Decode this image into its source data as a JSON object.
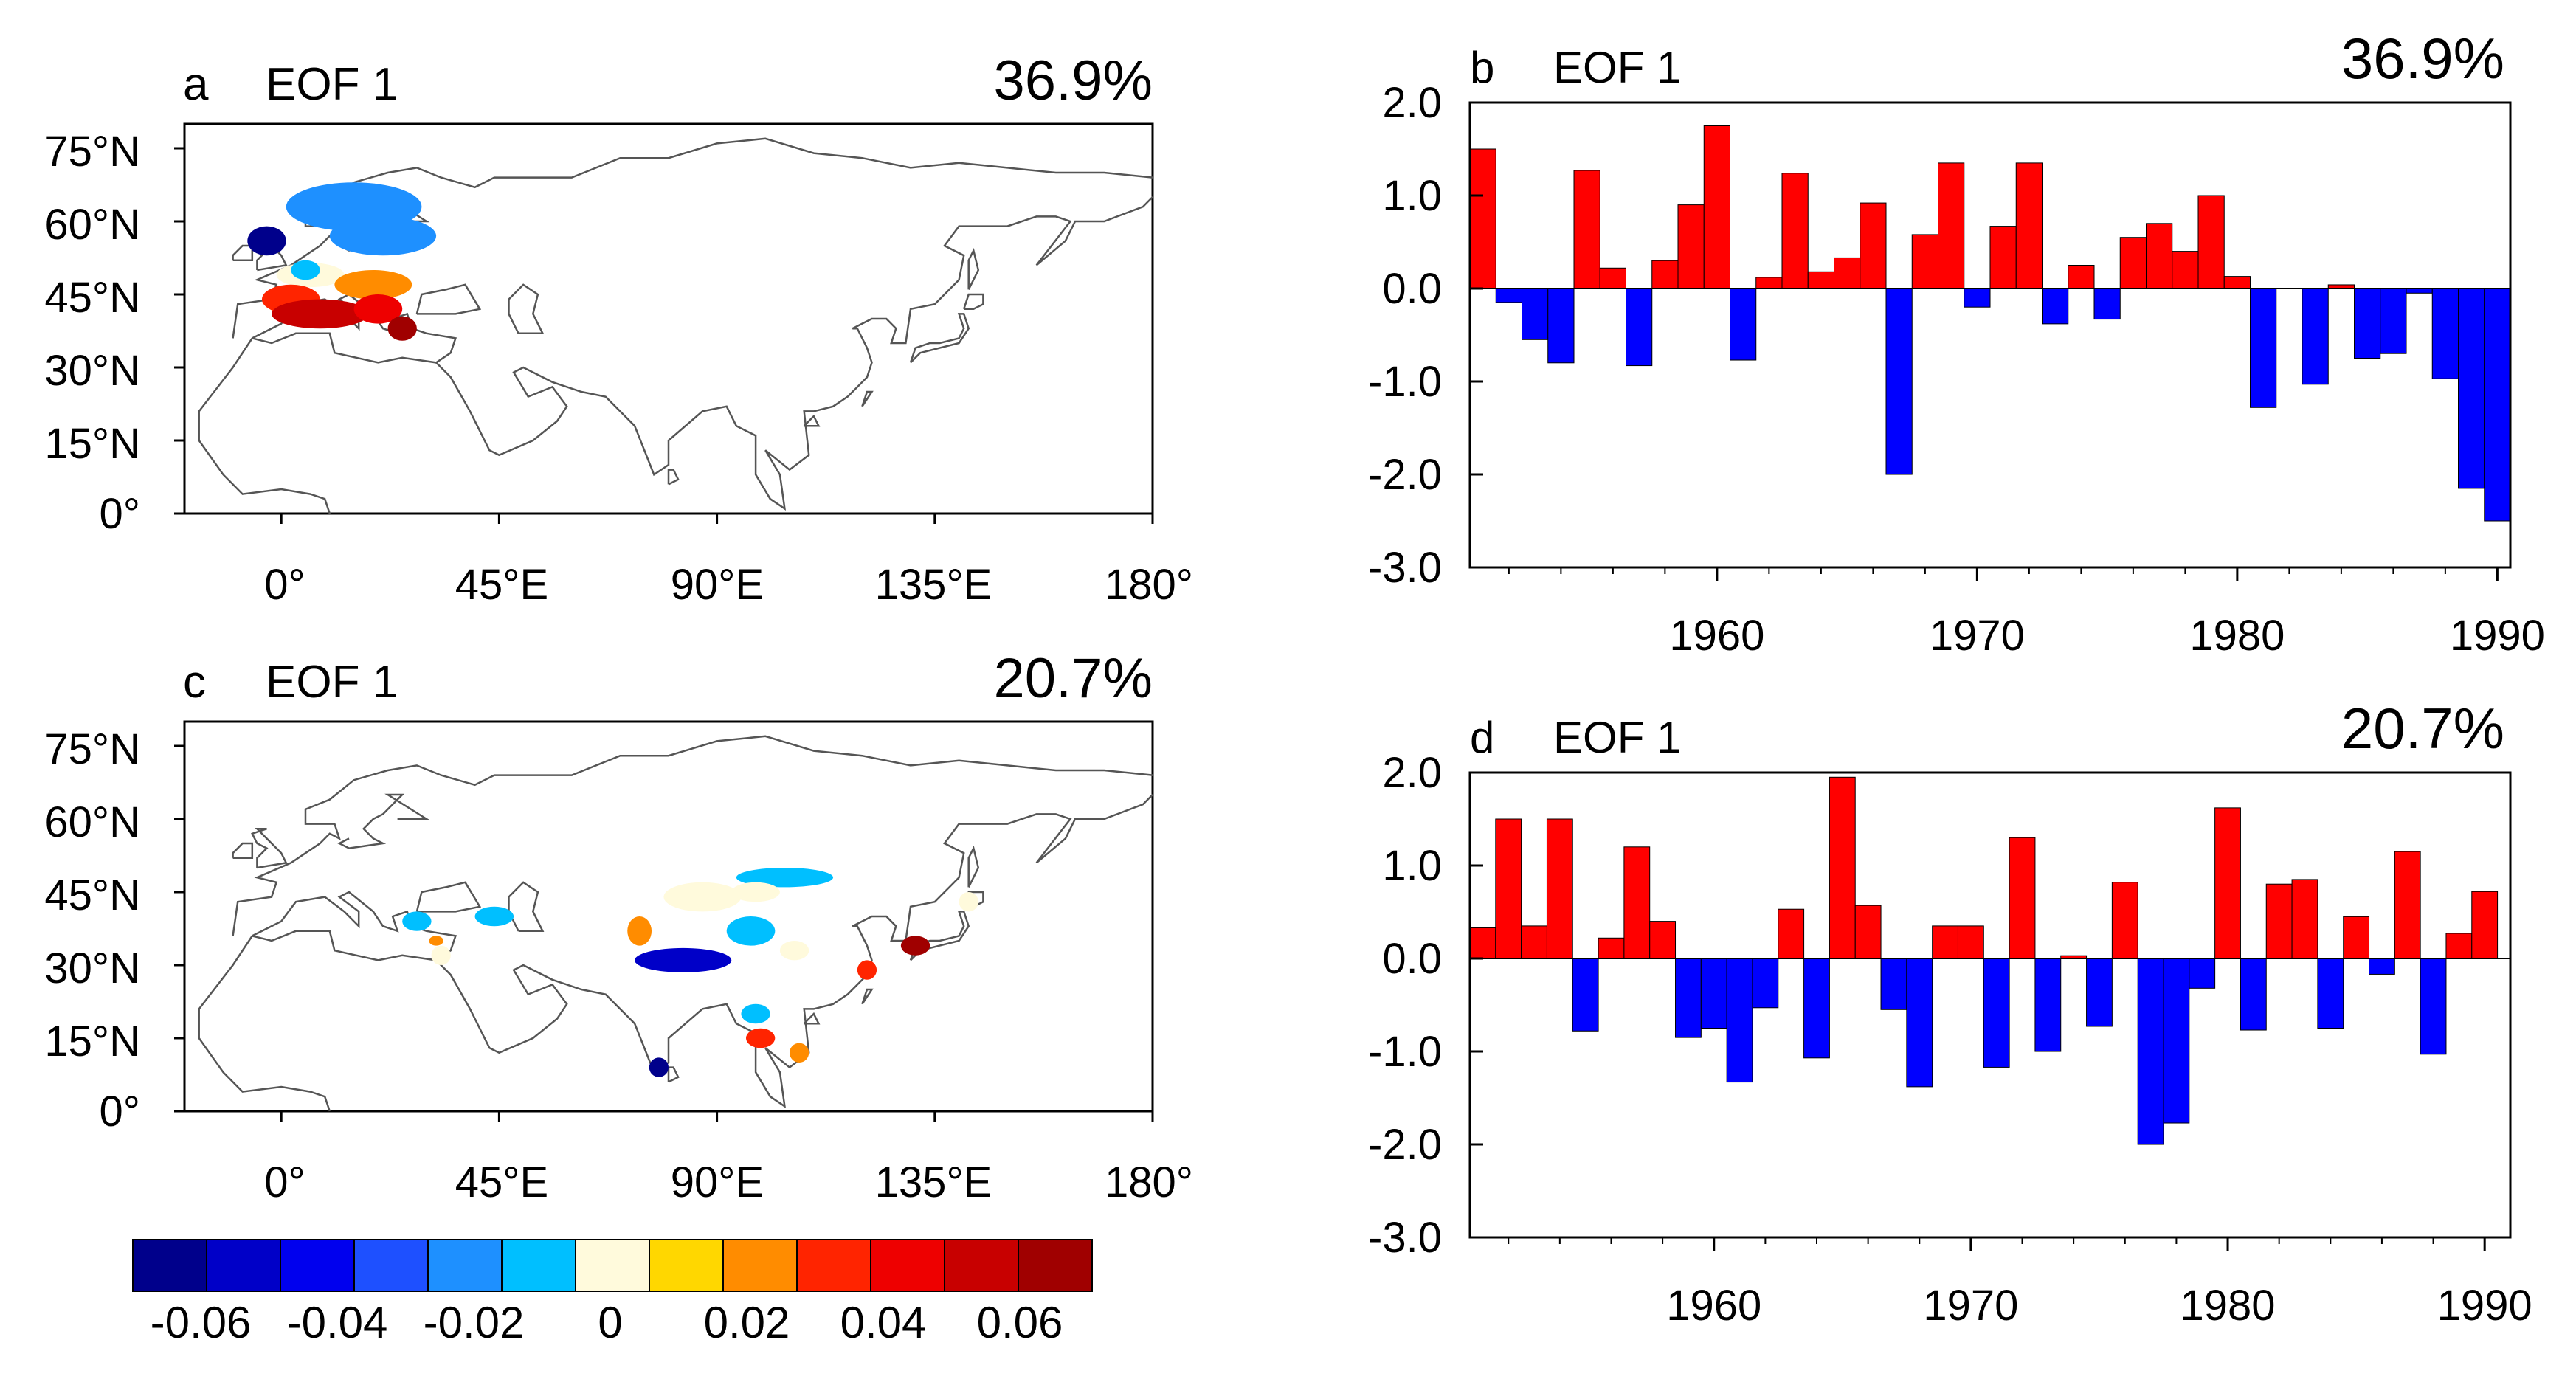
{
  "colors": {
    "positive_bar": "#ff0000",
    "negative_bar": "#0000ff",
    "coast": "#555555",
    "colorbar": [
      "#00008b",
      "#0000c8",
      "#0000ee",
      "#1e50ff",
      "#1e90ff",
      "#00bfff",
      "#fffadc",
      "#ffd700",
      "#ff8c00",
      "#ff2400",
      "#ee0000",
      "#c80000",
      "#a00000"
    ]
  },
  "maps": [
    {
      "panel_letter": "a",
      "title": "EOF 1",
      "variance": "36.9%",
      "lat_ticks": [
        "75°N",
        "60°N",
        "45°N",
        "30°N",
        "15°N",
        "0°"
      ],
      "lon_ticks": [
        "0°",
        "45°E",
        "90°E",
        "135°E",
        "180°"
      ],
      "patches": [
        {
          "lon": 15,
          "lat": 63,
          "value": -0.025,
          "rx": 14,
          "ry": 5
        },
        {
          "lon": 21,
          "lat": 57,
          "value": -0.02,
          "rx": 11,
          "ry": 4
        },
        {
          "lon": -3,
          "lat": 56,
          "value": -0.06,
          "rx": 4,
          "ry": 3
        },
        {
          "lon": 6,
          "lat": 49,
          "value": 0.0,
          "rx": 7,
          "ry": 2.5
        },
        {
          "lon": 5,
          "lat": 50,
          "value": -0.015,
          "rx": 3,
          "ry": 2
        },
        {
          "lon": 19,
          "lat": 47,
          "value": 0.02,
          "rx": 8,
          "ry": 3
        },
        {
          "lon": 2,
          "lat": 44,
          "value": 0.03,
          "rx": 6,
          "ry": 3
        },
        {
          "lon": 8,
          "lat": 41,
          "value": 0.045,
          "rx": 10,
          "ry": 3
        },
        {
          "lon": 20,
          "lat": 42,
          "value": 0.035,
          "rx": 5,
          "ry": 3
        },
        {
          "lon": 25,
          "lat": 38,
          "value": 0.055,
          "rx": 3,
          "ry": 2.5
        }
      ]
    },
    {
      "panel_letter": "c",
      "title": "EOF 1",
      "variance": "20.7%",
      "lat_ticks": [
        "75°N",
        "60°N",
        "45°N",
        "30°N",
        "15°N",
        "0°"
      ],
      "lon_ticks": [
        "0°",
        "45°E",
        "90°E",
        "135°E",
        "180°"
      ],
      "patches": [
        {
          "lon": 28,
          "lat": 39,
          "value": -0.015,
          "rx": 3,
          "ry": 2
        },
        {
          "lon": 44,
          "lat": 40,
          "value": -0.015,
          "rx": 4,
          "ry": 2
        },
        {
          "lon": 32,
          "lat": 35,
          "value": 0.02,
          "rx": 1.5,
          "ry": 1
        },
        {
          "lon": 33,
          "lat": 32,
          "value": 0.0,
          "rx": 2,
          "ry": 2
        },
        {
          "lon": 74,
          "lat": 37,
          "value": 0.02,
          "rx": 2.5,
          "ry": 3
        },
        {
          "lon": 87,
          "lat": 44,
          "value": 0.0,
          "rx": 8,
          "ry": 3
        },
        {
          "lon": 104,
          "lat": 48,
          "value": -0.015,
          "rx": 10,
          "ry": 2
        },
        {
          "lon": 98,
          "lat": 45,
          "value": 0.0,
          "rx": 5,
          "ry": 2
        },
        {
          "lon": 97,
          "lat": 37,
          "value": -0.015,
          "rx": 5,
          "ry": 3
        },
        {
          "lon": 106,
          "lat": 33,
          "value": 0.0,
          "rx": 3,
          "ry": 2
        },
        {
          "lon": 83,
          "lat": 31,
          "value": -0.05,
          "rx": 10,
          "ry": 2.5
        },
        {
          "lon": 98,
          "lat": 20,
          "value": -0.015,
          "rx": 3,
          "ry": 2
        },
        {
          "lon": 99,
          "lat": 15,
          "value": 0.025,
          "rx": 3,
          "ry": 2
        },
        {
          "lon": 107,
          "lat": 12,
          "value": 0.02,
          "rx": 2,
          "ry": 2
        },
        {
          "lon": 121,
          "lat": 29,
          "value": 0.03,
          "rx": 2,
          "ry": 2
        },
        {
          "lon": 131,
          "lat": 34,
          "value": 0.055,
          "rx": 3,
          "ry": 2
        },
        {
          "lon": 78,
          "lat": 9,
          "value": -0.06,
          "rx": 2,
          "ry": 2
        },
        {
          "lon": 142,
          "lat": 43,
          "value": 0.0,
          "rx": 2,
          "ry": 2
        }
      ]
    }
  ],
  "colorbar": {
    "tick_labels": [
      "-0.06",
      "-0.04",
      "-0.02",
      "0",
      "0.02",
      "0.04",
      "0.06"
    ]
  },
  "chart_data": [
    {
      "type": "bar",
      "panel_letter": "b",
      "title": "EOF 1",
      "variance": "36.9%",
      "x_start": 1951,
      "values": [
        1.5,
        -0.15,
        -0.55,
        -0.8,
        1.27,
        0.22,
        -0.83,
        0.3,
        0.9,
        1.75,
        -0.77,
        0.12,
        1.24,
        0.18,
        0.33,
        0.92,
        -2.0,
        0.58,
        1.35,
        -0.2,
        0.67,
        1.35,
        -0.38,
        0.25,
        -0.33,
        0.55,
        0.7,
        0.4,
        1.0,
        0.13,
        -1.28,
        0.0,
        -1.03,
        0.04,
        -0.75,
        -0.7,
        -0.05,
        -0.97,
        -2.15,
        -2.5
      ],
      "xlabel": "",
      "ylabel": "",
      "ylim": [
        -3.0,
        2.0
      ],
      "xlim": [
        1950.5,
        1990.5
      ],
      "y_ticks": [
        "2.0",
        "1.0",
        "0.0",
        "-1.0",
        "-2.0",
        "-3.0"
      ],
      "x_ticks": [
        "1960",
        "1970",
        "1980",
        "1990"
      ]
    },
    {
      "type": "bar",
      "panel_letter": "d",
      "title": "EOF 1",
      "variance": "20.7%",
      "x_start": 1951,
      "values": [
        0.33,
        1.5,
        0.35,
        1.5,
        -0.78,
        0.22,
        1.2,
        0.4,
        -0.85,
        -0.75,
        -1.33,
        -0.53,
        0.53,
        -1.07,
        1.95,
        0.57,
        -0.55,
        -1.38,
        0.35,
        0.35,
        -1.17,
        1.3,
        -1.0,
        0.03,
        -0.73,
        0.82,
        -2.0,
        -1.77,
        -0.32,
        1.62,
        -0.77,
        0.8,
        0.85,
        -0.75,
        0.45,
        -0.17,
        1.15,
        -1.03,
        0.27,
        0.72
      ],
      "xlabel": "",
      "ylabel": "",
      "ylim": [
        -3.0,
        2.0
      ],
      "xlim": [
        1950.5,
        1991
      ],
      "y_ticks": [
        "2.0",
        "1.0",
        "0.0",
        "-1.0",
        "-2.0",
        "-3.0"
      ],
      "x_ticks": [
        "1960",
        "1970",
        "1980",
        "1990"
      ]
    }
  ]
}
